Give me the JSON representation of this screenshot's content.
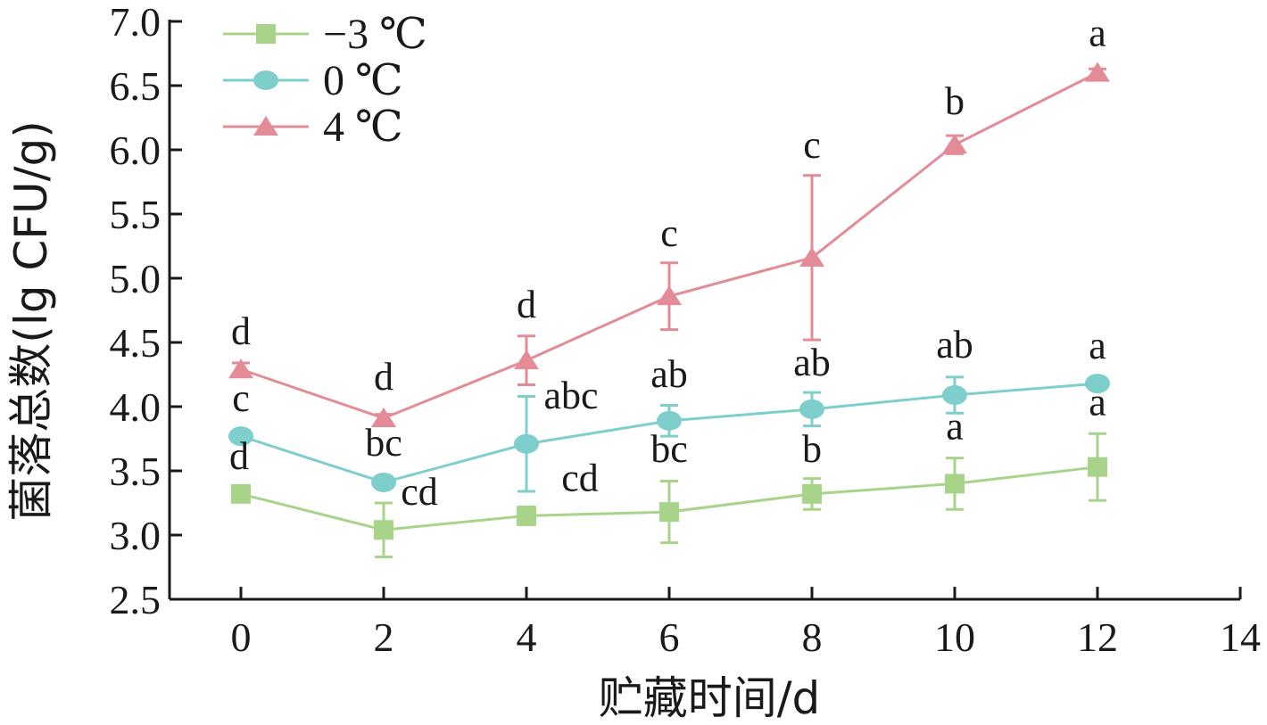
{
  "chart_data": {
    "type": "line",
    "title": "",
    "xlabel": "贮藏时间/d",
    "ylabel": "菌落总数(lg CFU/g)",
    "xlim": [
      -1,
      14
    ],
    "ylim": [
      2.5,
      7.0
    ],
    "xticks": [
      0,
      2,
      4,
      6,
      8,
      10,
      12,
      14
    ],
    "yticks": [
      2.5,
      3.0,
      3.5,
      4.0,
      4.5,
      5.0,
      5.5,
      6.0,
      6.5,
      7.0
    ],
    "ytick_labels": [
      "2.5",
      "3.0",
      "3.5",
      "4.0",
      "4.5",
      "5.0",
      "5.5",
      "6.0",
      "6.5",
      "7.0"
    ],
    "grid": false,
    "legend_position": "top-left",
    "x": [
      0,
      2,
      4,
      6,
      8,
      10,
      12
    ],
    "series": [
      {
        "name": "−3 ℃",
        "color": "#a8d48a",
        "marker": "square",
        "values": [
          3.32,
          3.04,
          3.15,
          3.18,
          3.32,
          3.4,
          3.53
        ],
        "errors": [
          0.06,
          0.21,
          0.07,
          0.24,
          0.12,
          0.2,
          0.26
        ],
        "labels": [
          "d",
          "cd",
          "cd",
          "bc",
          "b",
          "a",
          "a"
        ]
      },
      {
        "name": "0 ℃",
        "color": "#7ecfcc",
        "marker": "circle",
        "values": [
          3.77,
          3.41,
          3.71,
          3.89,
          3.98,
          4.09,
          4.18
        ],
        "errors": [
          0.03,
          0.03,
          0.37,
          0.12,
          0.13,
          0.14,
          0.03
        ],
        "labels": [
          "c",
          "bc",
          "abc",
          "ab",
          "ab",
          "ab",
          "a"
        ]
      },
      {
        "name": "4 ℃",
        "color": "#e38b97",
        "marker": "triangle",
        "values": [
          4.29,
          3.91,
          4.36,
          4.86,
          5.16,
          6.04,
          6.6
        ],
        "errors": [
          0.05,
          0.03,
          0.19,
          0.26,
          0.64,
          0.07,
          0.03
        ],
        "labels": [
          "d",
          "d",
          "d",
          "c",
          "c",
          "b",
          "a"
        ]
      }
    ]
  }
}
